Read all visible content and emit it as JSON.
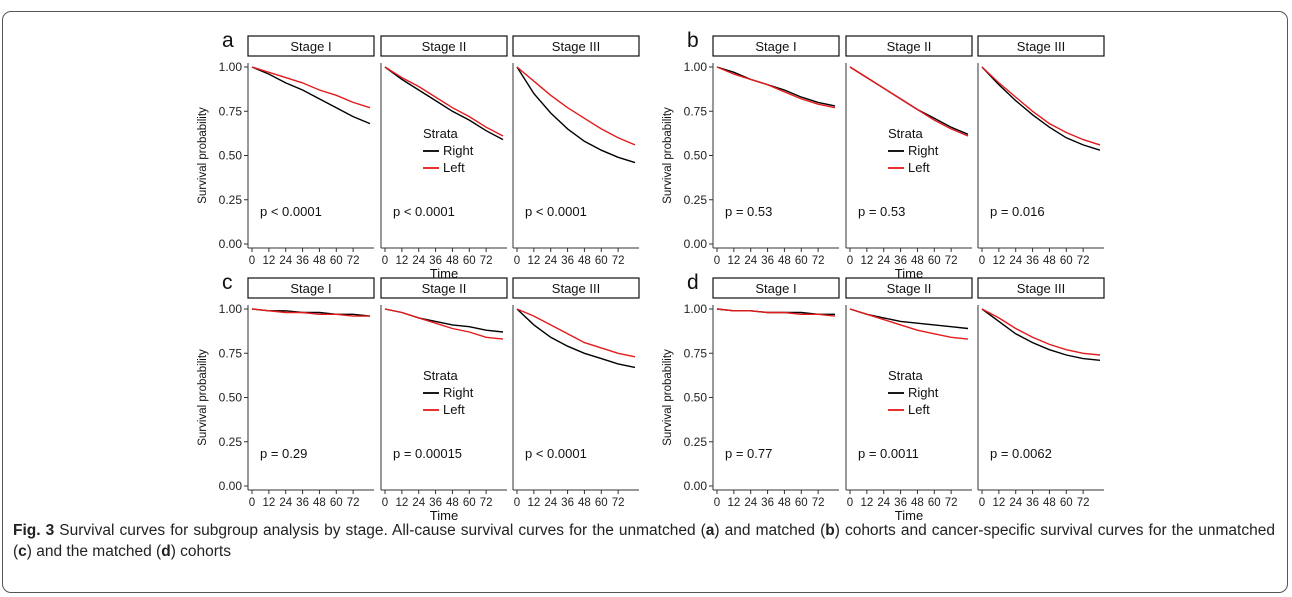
{
  "caption": {
    "label": "Fig. 3",
    "text_1": " Survival curves for subgroup analysis by stage. All-cause survival curves for the unmatched (",
    "l1": "a",
    "text_2": ") and matched (",
    "l2": "b",
    "text_3": ") cohorts and cancer-specific survival curves for the unmatched (",
    "l3": "c",
    "text_4": ") and the matched (",
    "l4": "d",
    "text_5": ") cohorts"
  },
  "colors": {
    "right": "#000000",
    "left": "#e41a1c"
  },
  "chart_data": [
    {
      "type": "line",
      "panel_label": "a",
      "ylabel": "Survival probability",
      "xlabel": "Time",
      "xticks": [
        0,
        12,
        24,
        36,
        48,
        60,
        72
      ],
      "xlim": [
        0,
        84
      ],
      "yticks": [
        "0.00",
        "0.25",
        "0.50",
        "0.75",
        "1.00"
      ],
      "ylim": [
        0,
        1
      ],
      "legend": {
        "title": "Strata",
        "entries": [
          "Right",
          "Left"
        ]
      },
      "facets": [
        {
          "strip": "Stage I",
          "p_value": "p < 0.0001",
          "series": [
            {
              "name": "Right",
              "x": [
                0,
                12,
                24,
                36,
                48,
                60,
                72,
                84
              ],
              "y": [
                1.0,
                0.96,
                0.91,
                0.87,
                0.82,
                0.77,
                0.72,
                0.68
              ]
            },
            {
              "name": "Left",
              "x": [
                0,
                12,
                24,
                36,
                48,
                60,
                72,
                84
              ],
              "y": [
                1.0,
                0.97,
                0.94,
                0.91,
                0.87,
                0.84,
                0.8,
                0.77
              ]
            }
          ]
        },
        {
          "strip": "Stage II",
          "p_value": "p < 0.0001",
          "series": [
            {
              "name": "Right",
              "x": [
                0,
                12,
                24,
                36,
                48,
                60,
                72,
                84
              ],
              "y": [
                1.0,
                0.93,
                0.87,
                0.81,
                0.75,
                0.7,
                0.64,
                0.59
              ]
            },
            {
              "name": "Left",
              "x": [
                0,
                12,
                24,
                36,
                48,
                60,
                72,
                84
              ],
              "y": [
                1.0,
                0.94,
                0.89,
                0.83,
                0.77,
                0.72,
                0.66,
                0.61
              ]
            }
          ]
        },
        {
          "strip": "Stage III",
          "p_value": "p < 0.0001",
          "series": [
            {
              "name": "Right",
              "x": [
                0,
                12,
                24,
                36,
                48,
                60,
                72,
                84
              ],
              "y": [
                1.0,
                0.85,
                0.74,
                0.65,
                0.58,
                0.53,
                0.49,
                0.46
              ]
            },
            {
              "name": "Left",
              "x": [
                0,
                12,
                24,
                36,
                48,
                60,
                72,
                84
              ],
              "y": [
                1.0,
                0.92,
                0.84,
                0.77,
                0.71,
                0.65,
                0.6,
                0.56
              ]
            }
          ]
        }
      ]
    },
    {
      "type": "line",
      "panel_label": "b",
      "ylabel": "Survival probability",
      "xlabel": "Time",
      "xticks": [
        0,
        12,
        24,
        36,
        48,
        60,
        72
      ],
      "xlim": [
        0,
        84
      ],
      "yticks": [
        "0.00",
        "0.25",
        "0.50",
        "0.75",
        "1.00"
      ],
      "ylim": [
        0,
        1
      ],
      "legend": {
        "title": "Strata",
        "entries": [
          "Right",
          "Left"
        ]
      },
      "facets": [
        {
          "strip": "Stage I",
          "p_value": "p = 0.53",
          "series": [
            {
              "name": "Right",
              "x": [
                0,
                12,
                24,
                36,
                48,
                60,
                72,
                84
              ],
              "y": [
                1.0,
                0.97,
                0.93,
                0.9,
                0.87,
                0.83,
                0.8,
                0.78
              ]
            },
            {
              "name": "Left",
              "x": [
                0,
                12,
                24,
                36,
                48,
                60,
                72,
                84
              ],
              "y": [
                1.0,
                0.96,
                0.93,
                0.9,
                0.86,
                0.82,
                0.79,
                0.77
              ]
            }
          ]
        },
        {
          "strip": "Stage II",
          "p_value": "p = 0.53",
          "series": [
            {
              "name": "Right",
              "x": [
                0,
                12,
                24,
                36,
                48,
                60,
                72,
                84
              ],
              "y": [
                1.0,
                0.94,
                0.88,
                0.82,
                0.76,
                0.71,
                0.66,
                0.62
              ]
            },
            {
              "name": "Left",
              "x": [
                0,
                12,
                24,
                36,
                48,
                60,
                72,
                84
              ],
              "y": [
                1.0,
                0.94,
                0.88,
                0.82,
                0.76,
                0.7,
                0.65,
                0.61
              ]
            }
          ]
        },
        {
          "strip": "Stage III",
          "p_value": "p = 0.016",
          "series": [
            {
              "name": "Right",
              "x": [
                0,
                12,
                24,
                36,
                48,
                60,
                72,
                84
              ],
              "y": [
                1.0,
                0.9,
                0.81,
                0.73,
                0.66,
                0.6,
                0.56,
                0.53
              ]
            },
            {
              "name": "Left",
              "x": [
                0,
                12,
                24,
                36,
                48,
                60,
                72,
                84
              ],
              "y": [
                1.0,
                0.91,
                0.83,
                0.75,
                0.68,
                0.63,
                0.59,
                0.56
              ]
            }
          ]
        }
      ]
    },
    {
      "type": "line",
      "panel_label": "c",
      "ylabel": "Survival probability",
      "xlabel": "Time",
      "xticks": [
        0,
        12,
        24,
        36,
        48,
        60,
        72
      ],
      "xlim": [
        0,
        84
      ],
      "yticks": [
        "0.00",
        "0.25",
        "0.50",
        "0.75",
        "1.00"
      ],
      "ylim": [
        0,
        1
      ],
      "legend": {
        "title": "Strata",
        "entries": [
          "Right",
          "Left"
        ]
      },
      "facets": [
        {
          "strip": "Stage I",
          "p_value": "p = 0.29",
          "series": [
            {
              "name": "Right",
              "x": [
                0,
                12,
                24,
                36,
                48,
                60,
                72,
                84
              ],
              "y": [
                1.0,
                0.99,
                0.99,
                0.98,
                0.98,
                0.97,
                0.97,
                0.96
              ]
            },
            {
              "name": "Left",
              "x": [
                0,
                12,
                24,
                36,
                48,
                60,
                72,
                84
              ],
              "y": [
                1.0,
                0.99,
                0.98,
                0.98,
                0.97,
                0.97,
                0.96,
                0.96
              ]
            }
          ]
        },
        {
          "strip": "Stage II",
          "p_value": "p = 0.00015",
          "series": [
            {
              "name": "Right",
              "x": [
                0,
                12,
                24,
                36,
                48,
                60,
                72,
                84
              ],
              "y": [
                1.0,
                0.98,
                0.95,
                0.93,
                0.91,
                0.9,
                0.88,
                0.87
              ]
            },
            {
              "name": "Left",
              "x": [
                0,
                12,
                24,
                36,
                48,
                60,
                72,
                84
              ],
              "y": [
                1.0,
                0.98,
                0.95,
                0.92,
                0.89,
                0.87,
                0.84,
                0.83
              ]
            }
          ]
        },
        {
          "strip": "Stage III",
          "p_value": "p < 0.0001",
          "series": [
            {
              "name": "Right",
              "x": [
                0,
                12,
                24,
                36,
                48,
                60,
                72,
                84
              ],
              "y": [
                1.0,
                0.91,
                0.84,
                0.79,
                0.75,
                0.72,
                0.69,
                0.67
              ]
            },
            {
              "name": "Left",
              "x": [
                0,
                12,
                24,
                36,
                48,
                60,
                72,
                84
              ],
              "y": [
                1.0,
                0.96,
                0.91,
                0.86,
                0.81,
                0.78,
                0.75,
                0.73
              ]
            }
          ]
        }
      ]
    },
    {
      "type": "line",
      "panel_label": "d",
      "ylabel": "Survival probability",
      "xlabel": "Time",
      "xticks": [
        0,
        12,
        24,
        36,
        48,
        60,
        72
      ],
      "xlim": [
        0,
        84
      ],
      "yticks": [
        "0.00",
        "0.25",
        "0.50",
        "0.75",
        "1.00"
      ],
      "ylim": [
        0,
        1
      ],
      "legend": {
        "title": "Strata",
        "entries": [
          "Right",
          "Left"
        ]
      },
      "facets": [
        {
          "strip": "Stage I",
          "p_value": "p = 0.77",
          "series": [
            {
              "name": "Right",
              "x": [
                0,
                12,
                24,
                36,
                48,
                60,
                72,
                84
              ],
              "y": [
                1.0,
                0.99,
                0.99,
                0.98,
                0.98,
                0.98,
                0.97,
                0.97
              ]
            },
            {
              "name": "Left",
              "x": [
                0,
                12,
                24,
                36,
                48,
                60,
                72,
                84
              ],
              "y": [
                1.0,
                0.99,
                0.99,
                0.98,
                0.98,
                0.97,
                0.97,
                0.96
              ]
            }
          ]
        },
        {
          "strip": "Stage II",
          "p_value": "p = 0.0011",
          "series": [
            {
              "name": "Right",
              "x": [
                0,
                12,
                24,
                36,
                48,
                60,
                72,
                84
              ],
              "y": [
                1.0,
                0.97,
                0.95,
                0.93,
                0.92,
                0.91,
                0.9,
                0.89
              ]
            },
            {
              "name": "Left",
              "x": [
                0,
                12,
                24,
                36,
                48,
                60,
                72,
                84
              ],
              "y": [
                1.0,
                0.97,
                0.94,
                0.91,
                0.88,
                0.86,
                0.84,
                0.83
              ]
            }
          ]
        },
        {
          "strip": "Stage III",
          "p_value": "p = 0.0062",
          "series": [
            {
              "name": "Right",
              "x": [
                0,
                12,
                24,
                36,
                48,
                60,
                72,
                84
              ],
              "y": [
                1.0,
                0.93,
                0.86,
                0.81,
                0.77,
                0.74,
                0.72,
                0.71
              ]
            },
            {
              "name": "Left",
              "x": [
                0,
                12,
                24,
                36,
                48,
                60,
                72,
                84
              ],
              "y": [
                1.0,
                0.95,
                0.89,
                0.84,
                0.8,
                0.77,
                0.75,
                0.74
              ]
            }
          ]
        }
      ]
    }
  ]
}
